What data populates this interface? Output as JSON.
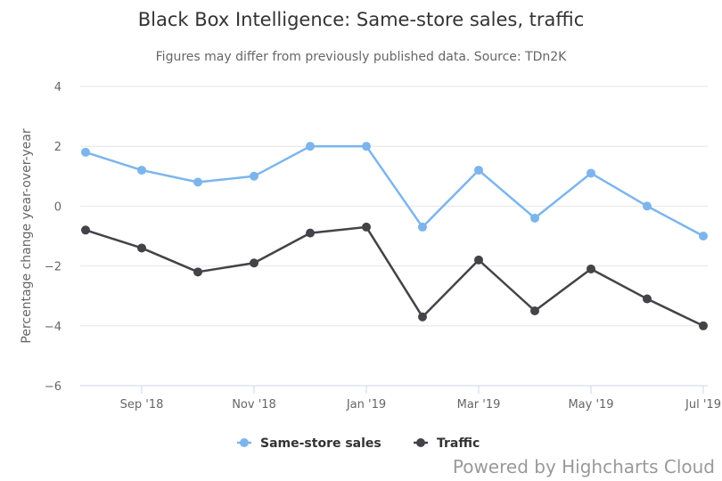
{
  "chart_data": {
    "type": "line",
    "title": "Black Box Intelligence: Same-store sales, traffic",
    "subtitle": "Figures may differ from previously published data. Source: TDn2K",
    "ylabel": "Percentage change year-over-year",
    "xlabel": "",
    "ylim": [
      -6,
      4
    ],
    "yticks": [
      -6,
      -4,
      -2,
      0,
      2,
      4
    ],
    "x": [
      "2018-08",
      "2018-09",
      "2018-10",
      "2018-11",
      "2018-12",
      "2019-01",
      "2019-02",
      "2019-03",
      "2019-04",
      "2019-05",
      "2019-06",
      "2019-07"
    ],
    "xtick_labels": [
      {
        "x": "2018-09",
        "label": "Sep '18"
      },
      {
        "x": "2018-11",
        "label": "Nov '18"
      },
      {
        "x": "2019-01",
        "label": "Jan '19"
      },
      {
        "x": "2019-03",
        "label": "Mar '19"
      },
      {
        "x": "2019-05",
        "label": "May '19"
      },
      {
        "x": "2019-07",
        "label": "Jul '19"
      }
    ],
    "series": [
      {
        "name": "Same-store sales",
        "color": "#7cb5ec",
        "values": [
          1.8,
          1.2,
          0.8,
          1.0,
          2.0,
          2.0,
          -0.7,
          1.2,
          -0.4,
          1.1,
          0.0,
          -1.0
        ]
      },
      {
        "name": "Traffic",
        "color": "#434348",
        "values": [
          -0.8,
          -1.4,
          -2.2,
          -1.9,
          -0.9,
          -0.7,
          -3.7,
          -1.8,
          -3.5,
          -2.1,
          -3.1,
          -4.0
        ]
      }
    ],
    "grid": true,
    "legend_position": "bottom-center"
  },
  "credits": "Powered by Highcharts Cloud"
}
